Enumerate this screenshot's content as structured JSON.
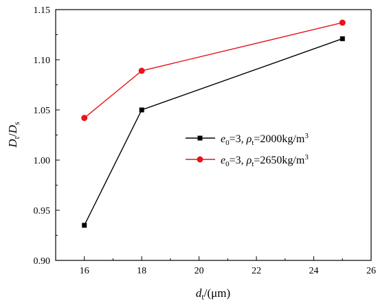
{
  "chart_data": {
    "type": "line",
    "x": [
      16,
      18,
      25
    ],
    "xlim": [
      15,
      26
    ],
    "ylim": [
      0.9,
      1.15
    ],
    "xticks": [
      "16",
      "18",
      "20",
      "22",
      "24",
      "26"
    ],
    "yticks": [
      "0.90",
      "0.95",
      "1.00",
      "1.05",
      "1.10",
      "1.15"
    ],
    "xlabel": {
      "main": "d",
      "sub": "t",
      "suffix": "/(μm)"
    },
    "ylabel": {
      "a": "D",
      "a_sub": "t",
      "slash": "/",
      "b": "D",
      "b_sub": "s"
    },
    "grid": false,
    "legend_position": "center-right",
    "series": [
      {
        "name": "e0=3, ρt=2000kg/m3",
        "legend": {
          "e": "e",
          "e_sub": "0",
          "eq": "=3, ",
          "rho": "ρ",
          "rho_sub": "t",
          "val": "=2000kg/m",
          "sup": "3"
        },
        "values": [
          0.935,
          1.05,
          1.121
        ],
        "color": "#000000",
        "marker": "square"
      },
      {
        "name": "e0=3, ρt=2650kg/m3",
        "legend": {
          "e": "e",
          "e_sub": "0",
          "eq": "=3, ",
          "rho": "ρ",
          "rho_sub": "t",
          "val": "=2650kg/m",
          "sup": "3"
        },
        "values": [
          1.042,
          1.089,
          1.137
        ],
        "color": "#e8141b",
        "marker": "circle"
      }
    ]
  }
}
